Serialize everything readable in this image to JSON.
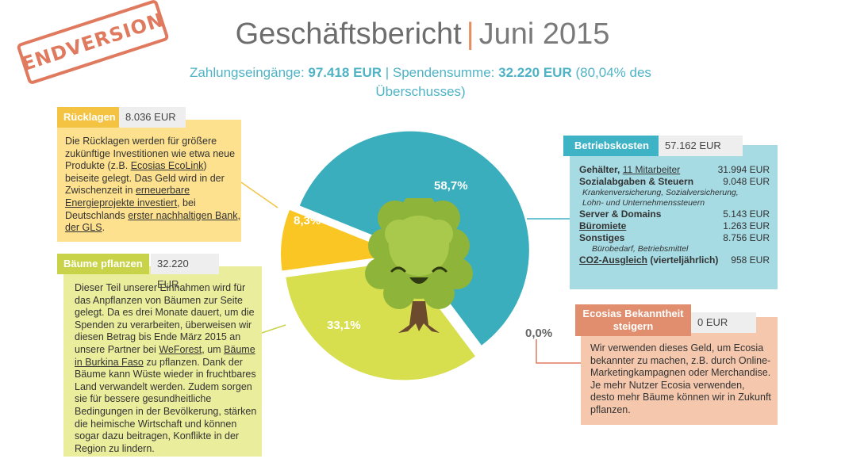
{
  "stamp": "ENDVERSION",
  "header": {
    "title_a": "Geschäftsbericht",
    "title_sep": "|",
    "title_b": "Juni 2015",
    "sub_1": "Zahlungseingänge: ",
    "sub_2": "97.418 EUR",
    "sub_3": " | Spendensumme: ",
    "sub_4": "32.220 EUR",
    "sub_5": " (80,04% des",
    "sub_6": "Überschusses)"
  },
  "ruecklagen": {
    "label": "Rücklagen",
    "amount": "8.036 EUR",
    "t1": "Die Rücklagen werden für größere zukünftige Investitionen wie etwa neue Produkte (z.B. ",
    "l1": "Ecosias EcoLink",
    "t2": ") beiseite gelegt. Das Geld wird in der Zwischenzeit in ",
    "l2": "erneuerbare Energieprojekte investiert",
    "t3": ", bei Deutschlands ",
    "l3": "erster nachhaltigen Bank, der GLS",
    "t4": "."
  },
  "baeume": {
    "label": "Bäume pflanzen",
    "amount": "32.220 EUR",
    "t1": "Dieser Teil unserer Einnahmen wird für das Anpflanzen von Bäumen zur Seite gelegt. Da es drei Monate dauert, um die Spenden zu verarbeiten, überweisen wir diesen Betrag bis Ende März 2015 an unsere Partner bei ",
    "l1": "WeForest",
    "t2": ", um ",
    "l2": "Bäume in Burkina Faso",
    "t3": " zu pflanzen. Dank der Bäume kann Wüste wieder in fruchtbares Land verwandelt werden. Zudem sorgen sie für bessere gesundheitliche Bedingungen in der Bevölkerung, stärken die heimische Wirtschaft und können sogar dazu beitragen, Konflikte in der Region zu lindern."
  },
  "betrieb": {
    "label": "Betriebskosten",
    "amount": "57.162 EUR",
    "r1_a": "Gehälter, ",
    "r1_link": "11 Mitarbeiter",
    "r1_v": "31.994 EUR",
    "r2_l": "Sozialabgaben & Steuern",
    "r2_v": "9.048 EUR",
    "r2_note": "Krankenversicherung, Sozialversicherung, Lohn- und Unternehmenssteuern",
    "r3_l": "Server & Domains",
    "r3_v": "5.143 EUR",
    "r4_l": "Büromiete",
    "r4_v": "1.263 EUR",
    "r5_l": "Sonstiges",
    "r5_v": "8.756 EUR",
    "r5_note": "Bürobedarf, Betriebsmittel",
    "r6_link": "CO2-Ausgleich",
    "r6_l": " (vierteljährlich)",
    "r6_v": "958 EUR"
  },
  "ecosia": {
    "label": "Ecosias Bekanntheit steigern",
    "amount": "0 EUR",
    "text": "Wir verwenden dieses Geld, um Ecosia bekannter zu machen, z.B. durch Online-Marketingkampagnen oder Merchandise. Je mehr Nutzer Ecosia verwenden, desto mehr Bäume können wir in Zukunft pflanzen."
  },
  "chart_data": {
    "type": "pie",
    "slices": [
      {
        "label": "58,7%",
        "value": 58.7,
        "color": "#3aaebd"
      },
      {
        "label": "0,0%",
        "value": 0.0,
        "color": "#e07a5f"
      },
      {
        "label": "33,1%",
        "value": 33.1,
        "color": "#d7df4f"
      },
      {
        "label": "8,3%",
        "value": 8.3,
        "color": "#f9c623"
      }
    ]
  },
  "colors": {
    "accent_blue": "#3fb3c6",
    "accent_yellow": "#f4c342",
    "accent_green": "#c8d34a",
    "accent_orange": "#e08e6d",
    "tree": "tree-mascot-icon"
  }
}
